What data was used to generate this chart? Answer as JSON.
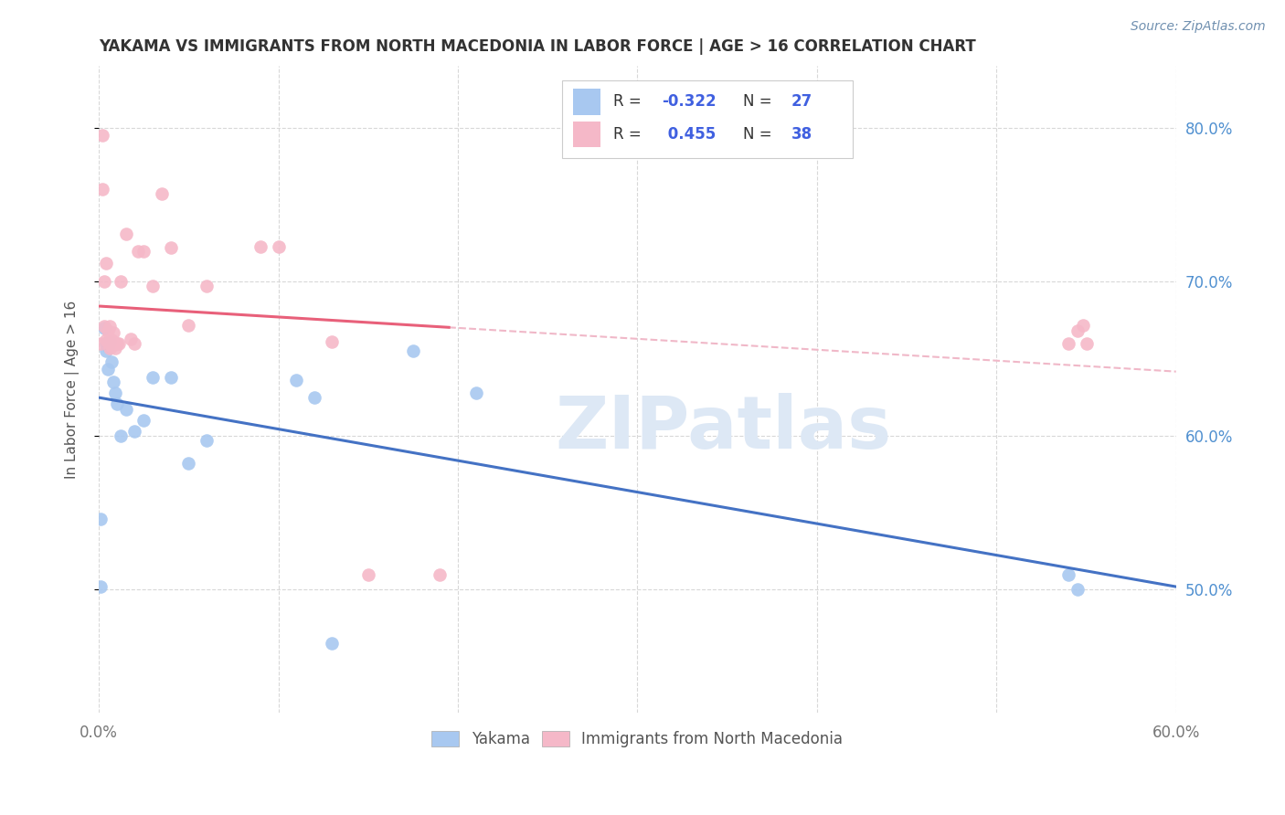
{
  "title": "YAKAMA VS IMMIGRANTS FROM NORTH MACEDONIA IN LABOR FORCE | AGE > 16 CORRELATION CHART",
  "source": "Source: ZipAtlas.com",
  "ylabel": "In Labor Force | Age > 16",
  "xlim": [
    0.0,
    0.6
  ],
  "ylim": [
    0.42,
    0.84
  ],
  "xtick_positions": [
    0.0,
    0.1,
    0.2,
    0.3,
    0.4,
    0.5,
    0.6
  ],
  "xtick_labels": [
    "0.0%",
    "",
    "",
    "",
    "",
    "",
    "60.0%"
  ],
  "ytick_positions": [
    0.5,
    0.6,
    0.7,
    0.8
  ],
  "ytick_labels_right": [
    "50.0%",
    "60.0%",
    "70.0%",
    "80.0%"
  ],
  "yakama_x": [
    0.001,
    0.001,
    0.003,
    0.004,
    0.004,
    0.005,
    0.005,
    0.006,
    0.007,
    0.008,
    0.009,
    0.01,
    0.012,
    0.015,
    0.02,
    0.025,
    0.03,
    0.04,
    0.05,
    0.06,
    0.11,
    0.12,
    0.13,
    0.175,
    0.21,
    0.54,
    0.545
  ],
  "yakama_y": [
    0.546,
    0.502,
    0.67,
    0.655,
    0.66,
    0.658,
    0.643,
    0.661,
    0.648,
    0.635,
    0.628,
    0.621,
    0.6,
    0.617,
    0.603,
    0.61,
    0.638,
    0.638,
    0.582,
    0.597,
    0.636,
    0.625,
    0.465,
    0.655,
    0.628,
    0.51,
    0.5
  ],
  "macedonia_x": [
    0.001,
    0.002,
    0.002,
    0.003,
    0.003,
    0.004,
    0.004,
    0.005,
    0.005,
    0.006,
    0.006,
    0.007,
    0.007,
    0.008,
    0.008,
    0.009,
    0.01,
    0.011,
    0.012,
    0.015,
    0.018,
    0.02,
    0.022,
    0.025,
    0.03,
    0.035,
    0.04,
    0.05,
    0.06,
    0.09,
    0.1,
    0.13,
    0.15,
    0.19,
    0.54,
    0.545,
    0.548,
    0.55
  ],
  "macedonia_y": [
    0.66,
    0.795,
    0.76,
    0.671,
    0.7,
    0.712,
    0.662,
    0.661,
    0.668,
    0.657,
    0.671,
    0.658,
    0.662,
    0.661,
    0.667,
    0.657,
    0.66,
    0.66,
    0.7,
    0.731,
    0.663,
    0.66,
    0.72,
    0.72,
    0.697,
    0.757,
    0.722,
    0.672,
    0.697,
    0.723,
    0.723,
    0.661,
    0.51,
    0.51,
    0.66,
    0.668,
    0.672,
    0.66
  ],
  "yakama_color": "#A8C8F0",
  "macedonia_color": "#F5B8C8",
  "yakama_line_color": "#4472C4",
  "macedonia_line_color": "#E8607A",
  "R_yakama": -0.322,
  "N_yakama": 27,
  "R_macedonia": 0.455,
  "N_macedonia": 38,
  "watermark": "ZIPatlas",
  "background_color": "#ffffff",
  "grid_color": "#D8D8D8"
}
